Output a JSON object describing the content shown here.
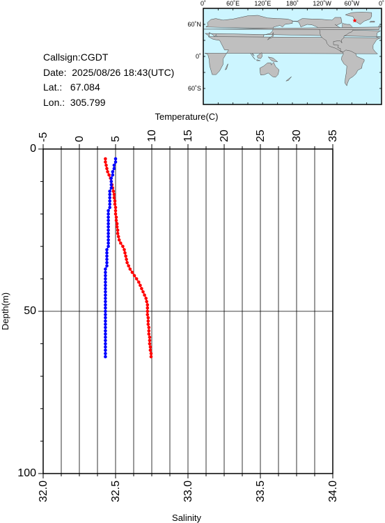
{
  "info": {
    "callsign_label": "Callsign:",
    "callsign": "CGDT",
    "date_label": "Date:",
    "date": "2025/08/26 18:43(UTC)",
    "lat_label": "Lat.:",
    "lat": "67.084",
    "lon_label": "Lon.:",
    "lon": "305.799"
  },
  "map": {
    "top_labels": [
      "0˚",
      "60˚E",
      "120˚E",
      "180˚",
      "120˚W",
      "60˚W",
      "0˚"
    ],
    "left_labels": [
      "60˚N",
      "0˚",
      "60˚S"
    ],
    "ocean_color": "#ccf5ff",
    "land_color": "#bfbfbf",
    "marker_color": "#ff0000"
  },
  "chart_data": {
    "type": "line",
    "y_axis": {
      "label": "Depth(m)",
      "range": [
        0,
        100
      ],
      "ticks": [
        "0",
        "50",
        "100"
      ],
      "reversed": true
    },
    "top_axis": {
      "label": "Temperature(C)",
      "range": [
        -5,
        35
      ],
      "ticks": [
        "-5",
        "0",
        "5",
        "10",
        "15",
        "20",
        "25",
        "30",
        "35"
      ]
    },
    "bottom_axis": {
      "label": "Salinity",
      "range": [
        32.0,
        34.0
      ],
      "ticks": [
        "32.0",
        "32.5",
        "33.0",
        "33.5",
        "34.0"
      ]
    },
    "grid": true,
    "series": [
      {
        "axis": "temperature",
        "color": "#ff0000",
        "points": [
          [
            3.6,
            3
          ],
          [
            3.6,
            4
          ],
          [
            3.7,
            5
          ],
          [
            3.8,
            6
          ],
          [
            3.9,
            7
          ],
          [
            4.1,
            8
          ],
          [
            4.3,
            9
          ],
          [
            4.4,
            10
          ],
          [
            4.5,
            11
          ],
          [
            4.6,
            12
          ],
          [
            4.7,
            13
          ],
          [
            4.8,
            14
          ],
          [
            4.8,
            15
          ],
          [
            4.9,
            16
          ],
          [
            4.9,
            17
          ],
          [
            5.0,
            18
          ],
          [
            5.0,
            19
          ],
          [
            5.0,
            20
          ],
          [
            5.1,
            21
          ],
          [
            5.1,
            22
          ],
          [
            5.2,
            23
          ],
          [
            5.2,
            24
          ],
          [
            5.3,
            25
          ],
          [
            5.3,
            26
          ],
          [
            5.4,
            27
          ],
          [
            5.5,
            28
          ],
          [
            5.7,
            29
          ],
          [
            6.0,
            30
          ],
          [
            6.2,
            31
          ],
          [
            6.3,
            32
          ],
          [
            6.4,
            33
          ],
          [
            6.5,
            34
          ],
          [
            6.6,
            35
          ],
          [
            6.8,
            36
          ],
          [
            7.0,
            37
          ],
          [
            7.3,
            38
          ],
          [
            7.6,
            39
          ],
          [
            7.9,
            40
          ],
          [
            8.2,
            41
          ],
          [
            8.4,
            42
          ],
          [
            8.6,
            43
          ],
          [
            8.8,
            44
          ],
          [
            9.0,
            45
          ],
          [
            9.2,
            46
          ],
          [
            9.3,
            47
          ],
          [
            9.4,
            48
          ],
          [
            9.4,
            49
          ],
          [
            9.4,
            50
          ],
          [
            9.4,
            51
          ],
          [
            9.5,
            52
          ],
          [
            9.5,
            53
          ],
          [
            9.5,
            54
          ],
          [
            9.6,
            55
          ],
          [
            9.6,
            56
          ],
          [
            9.6,
            57
          ],
          [
            9.7,
            58
          ],
          [
            9.7,
            59
          ],
          [
            9.7,
            60
          ],
          [
            9.8,
            61
          ],
          [
            9.8,
            62
          ],
          [
            9.9,
            63
          ],
          [
            9.9,
            64
          ]
        ]
      },
      {
        "axis": "salinity",
        "color": "#0000ff",
        "points": [
          [
            32.5,
            3
          ],
          [
            32.5,
            4
          ],
          [
            32.49,
            5
          ],
          [
            32.49,
            6
          ],
          [
            32.48,
            7
          ],
          [
            32.48,
            8
          ],
          [
            32.47,
            9
          ],
          [
            32.47,
            10
          ],
          [
            32.47,
            11
          ],
          [
            32.47,
            12
          ],
          [
            32.46,
            13
          ],
          [
            32.46,
            14
          ],
          [
            32.46,
            15
          ],
          [
            32.46,
            16
          ],
          [
            32.46,
            17
          ],
          [
            32.46,
            18
          ],
          [
            32.45,
            19
          ],
          [
            32.45,
            20
          ],
          [
            32.45,
            21
          ],
          [
            32.45,
            22
          ],
          [
            32.45,
            23
          ],
          [
            32.45,
            24
          ],
          [
            32.45,
            25
          ],
          [
            32.45,
            26
          ],
          [
            32.45,
            27
          ],
          [
            32.45,
            28
          ],
          [
            32.45,
            29
          ],
          [
            32.45,
            30
          ],
          [
            32.44,
            31
          ],
          [
            32.44,
            32
          ],
          [
            32.44,
            33
          ],
          [
            32.44,
            34
          ],
          [
            32.44,
            35
          ],
          [
            32.44,
            36
          ],
          [
            32.43,
            37
          ],
          [
            32.43,
            38
          ],
          [
            32.43,
            39
          ],
          [
            32.43,
            40
          ],
          [
            32.43,
            41
          ],
          [
            32.43,
            42
          ],
          [
            32.43,
            43
          ],
          [
            32.43,
            44
          ],
          [
            32.43,
            45
          ],
          [
            32.43,
            46
          ],
          [
            32.43,
            47
          ],
          [
            32.43,
            48
          ],
          [
            32.43,
            49
          ],
          [
            32.43,
            50
          ],
          [
            32.43,
            51
          ],
          [
            32.43,
            52
          ],
          [
            32.43,
            53
          ],
          [
            32.43,
            54
          ],
          [
            32.43,
            55
          ],
          [
            32.43,
            56
          ],
          [
            32.43,
            57
          ],
          [
            32.43,
            58
          ],
          [
            32.43,
            59
          ],
          [
            32.43,
            60
          ],
          [
            32.43,
            61
          ],
          [
            32.43,
            62
          ],
          [
            32.43,
            63
          ],
          [
            32.43,
            64
          ]
        ]
      }
    ]
  }
}
